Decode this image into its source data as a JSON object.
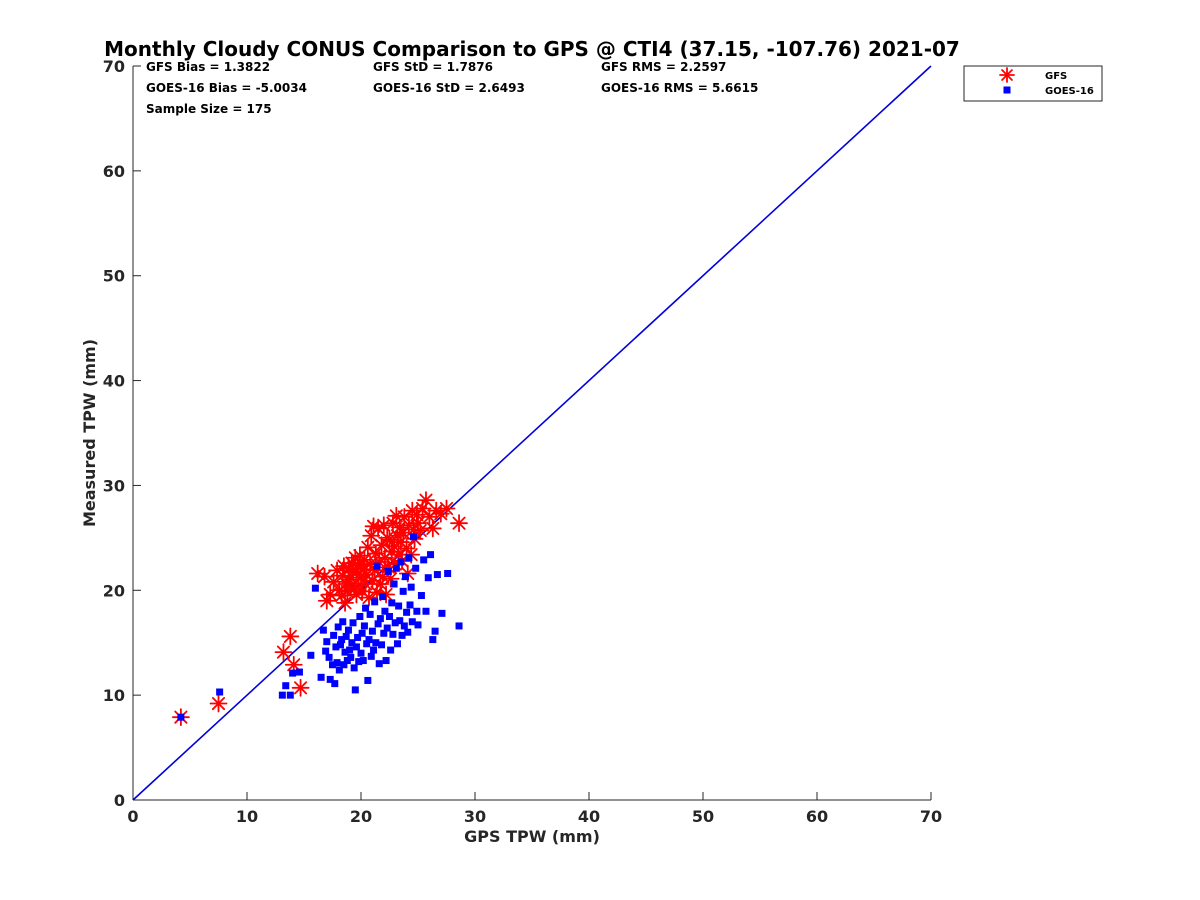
{
  "chart_data": {
    "type": "scatter",
    "title": "Monthly Cloudy CONUS Comparison to GPS @ CTI4 (37.15, -107.76) 2021-07",
    "xlabel": "GPS TPW (mm)",
    "ylabel": "Measured TPW (mm)",
    "xlim": [
      0,
      70
    ],
    "ylim": [
      0,
      70
    ],
    "xticks": [
      0,
      10,
      20,
      30,
      40,
      50,
      60,
      70
    ],
    "yticks": [
      0,
      10,
      20,
      30,
      40,
      50,
      60,
      70
    ],
    "grid": false,
    "legend_position": "top-right (outside plot)",
    "stats": [
      [
        "GFS Bias = 1.3822",
        "GFS StD = 1.7876",
        "GFS RMS = 2.2597"
      ],
      [
        "GOES-16 Bias = -5.0034",
        "GOES-16 StD = 2.6493",
        "GOES-16 RMS = 5.6615"
      ],
      [
        "Sample Size = 175"
      ]
    ],
    "reference_line": {
      "x": [
        0,
        70
      ],
      "y": [
        0,
        70
      ],
      "color": "#0000dd"
    },
    "series": [
      {
        "name": "GFS",
        "marker": "asterisk",
        "color": "#ff0000",
        "points": [
          [
            4.2,
            7.9
          ],
          [
            7.5,
            9.2
          ],
          [
            13.2,
            14.1
          ],
          [
            13.8,
            15.6
          ],
          [
            14.1,
            12.9
          ],
          [
            14.7,
            10.7
          ],
          [
            16.2,
            21.6
          ],
          [
            16.8,
            21.3
          ],
          [
            17.0,
            19.0
          ],
          [
            17.3,
            19.6
          ],
          [
            17.6,
            20.8
          ],
          [
            17.9,
            21.9
          ],
          [
            18.1,
            20.0
          ],
          [
            18.3,
            19.5
          ],
          [
            18.4,
            21.4
          ],
          [
            18.5,
            22.3
          ],
          [
            18.6,
            18.8
          ],
          [
            18.7,
            20.6
          ],
          [
            18.8,
            19.9
          ],
          [
            18.9,
            22.1
          ],
          [
            19.0,
            21.0
          ],
          [
            19.1,
            20.3
          ],
          [
            19.2,
            22.6
          ],
          [
            19.3,
            21.7
          ],
          [
            19.4,
            20.1
          ],
          [
            19.5,
            23.1
          ],
          [
            19.6,
            19.6
          ],
          [
            19.6,
            21.8
          ],
          [
            19.7,
            22.4
          ],
          [
            19.8,
            20.5
          ],
          [
            19.9,
            23.3
          ],
          [
            20.0,
            21.2
          ],
          [
            20.1,
            19.9
          ],
          [
            20.2,
            22.0
          ],
          [
            20.3,
            22.9
          ],
          [
            20.4,
            20.6
          ],
          [
            20.5,
            21.5
          ],
          [
            20.6,
            24.1
          ],
          [
            20.7,
            19.3
          ],
          [
            20.8,
            22.5
          ],
          [
            20.9,
            25.2
          ],
          [
            21.0,
            20.9
          ],
          [
            21.1,
            26.1
          ],
          [
            21.2,
            21.9
          ],
          [
            21.3,
            23.5
          ],
          [
            21.4,
            19.8
          ],
          [
            21.5,
            25.9
          ],
          [
            21.6,
            22.7
          ],
          [
            21.7,
            20.6
          ],
          [
            21.8,
            24.3
          ],
          [
            21.9,
            21.3
          ],
          [
            22.0,
            26.2
          ],
          [
            22.1,
            23.1
          ],
          [
            22.2,
            19.6
          ],
          [
            22.3,
            25.0
          ],
          [
            22.4,
            22.2
          ],
          [
            22.5,
            24.8
          ],
          [
            22.6,
            21.1
          ],
          [
            22.7,
            23.7
          ],
          [
            22.8,
            26.4
          ],
          [
            22.9,
            24.2
          ],
          [
            23.0,
            22.5
          ],
          [
            23.1,
            27.1
          ],
          [
            23.2,
            25.2
          ],
          [
            23.3,
            23.4
          ],
          [
            23.4,
            26.0
          ],
          [
            23.5,
            24.6
          ],
          [
            23.6,
            22.8
          ],
          [
            23.7,
            25.5
          ],
          [
            23.8,
            27.0
          ],
          [
            24.0,
            24.0
          ],
          [
            24.1,
            21.6
          ],
          [
            24.2,
            26.2
          ],
          [
            24.4,
            23.4
          ],
          [
            24.5,
            27.6
          ],
          [
            24.6,
            25.8
          ],
          [
            24.7,
            24.9
          ],
          [
            24.9,
            27.2
          ],
          [
            25.0,
            26.4
          ],
          [
            25.2,
            25.7
          ],
          [
            25.4,
            27.8
          ],
          [
            25.7,
            28.6
          ],
          [
            26.0,
            27.0
          ],
          [
            26.3,
            25.9
          ],
          [
            26.6,
            27.6
          ],
          [
            27.0,
            27.3
          ],
          [
            27.5,
            27.8
          ],
          [
            28.6,
            26.4
          ]
        ]
      },
      {
        "name": "GOES-16",
        "marker": "square",
        "color": "#0000ff",
        "points": [
          [
            4.2,
            7.9
          ],
          [
            7.6,
            10.3
          ],
          [
            13.1,
            10.0
          ],
          [
            13.4,
            10.9
          ],
          [
            13.8,
            10.0
          ],
          [
            14.0,
            12.1
          ],
          [
            14.6,
            12.2
          ],
          [
            15.6,
            13.8
          ],
          [
            16.0,
            20.2
          ],
          [
            16.5,
            11.7
          ],
          [
            16.7,
            16.2
          ],
          [
            16.9,
            14.2
          ],
          [
            17.0,
            15.1
          ],
          [
            17.2,
            13.6
          ],
          [
            17.3,
            11.5
          ],
          [
            17.5,
            12.9
          ],
          [
            17.6,
            15.7
          ],
          [
            17.7,
            11.1
          ],
          [
            17.8,
            14.6
          ],
          [
            17.9,
            13.1
          ],
          [
            18.0,
            16.5
          ],
          [
            18.1,
            12.4
          ],
          [
            18.2,
            14.8
          ],
          [
            18.3,
            15.3
          ],
          [
            18.4,
            17.0
          ],
          [
            18.5,
            12.9
          ],
          [
            18.6,
            14.1
          ],
          [
            18.7,
            15.6
          ],
          [
            18.8,
            13.3
          ],
          [
            18.9,
            16.2
          ],
          [
            19.0,
            14.3
          ],
          [
            19.1,
            13.6
          ],
          [
            19.2,
            15.0
          ],
          [
            19.3,
            16.9
          ],
          [
            19.4,
            12.6
          ],
          [
            19.5,
            10.5
          ],
          [
            19.6,
            14.6
          ],
          [
            19.7,
            15.5
          ],
          [
            19.8,
            13.2
          ],
          [
            19.9,
            17.5
          ],
          [
            20.0,
            14.0
          ],
          [
            20.1,
            15.9
          ],
          [
            20.2,
            13.3
          ],
          [
            20.3,
            16.6
          ],
          [
            20.4,
            18.3
          ],
          [
            20.5,
            14.9
          ],
          [
            20.6,
            11.4
          ],
          [
            20.7,
            15.3
          ],
          [
            20.8,
            17.7
          ],
          [
            20.9,
            13.7
          ],
          [
            21.0,
            16.1
          ],
          [
            21.1,
            14.3
          ],
          [
            21.2,
            18.9
          ],
          [
            21.3,
            15.0
          ],
          [
            21.4,
            22.3
          ],
          [
            21.5,
            16.8
          ],
          [
            21.6,
            13.0
          ],
          [
            21.7,
            17.3
          ],
          [
            21.8,
            14.8
          ],
          [
            21.9,
            19.4
          ],
          [
            22.0,
            15.9
          ],
          [
            22.1,
            18.0
          ],
          [
            22.2,
            13.3
          ],
          [
            22.3,
            16.4
          ],
          [
            22.4,
            21.8
          ],
          [
            22.5,
            17.5
          ],
          [
            22.6,
            14.3
          ],
          [
            22.7,
            18.8
          ],
          [
            22.8,
            15.8
          ],
          [
            22.9,
            20.6
          ],
          [
            23.0,
            16.9
          ],
          [
            23.1,
            22.1
          ],
          [
            23.2,
            14.9
          ],
          [
            23.3,
            18.5
          ],
          [
            23.4,
            17.1
          ],
          [
            23.5,
            22.7
          ],
          [
            23.6,
            15.7
          ],
          [
            23.7,
            19.9
          ],
          [
            23.8,
            16.6
          ],
          [
            23.9,
            21.3
          ],
          [
            24.0,
            17.9
          ],
          [
            24.1,
            16.0
          ],
          [
            24.2,
            23.1
          ],
          [
            24.3,
            18.6
          ],
          [
            24.4,
            20.3
          ],
          [
            24.5,
            17.0
          ],
          [
            24.6,
            25.1
          ],
          [
            24.8,
            22.1
          ],
          [
            24.9,
            18.0
          ],
          [
            25.0,
            16.7
          ],
          [
            25.3,
            19.5
          ],
          [
            25.5,
            22.9
          ],
          [
            25.7,
            18.0
          ],
          [
            25.9,
            21.2
          ],
          [
            26.1,
            23.4
          ],
          [
            26.3,
            15.3
          ],
          [
            26.5,
            16.1
          ],
          [
            26.7,
            21.5
          ],
          [
            27.1,
            17.8
          ],
          [
            27.6,
            21.6
          ],
          [
            28.6,
            16.6
          ]
        ]
      }
    ]
  }
}
